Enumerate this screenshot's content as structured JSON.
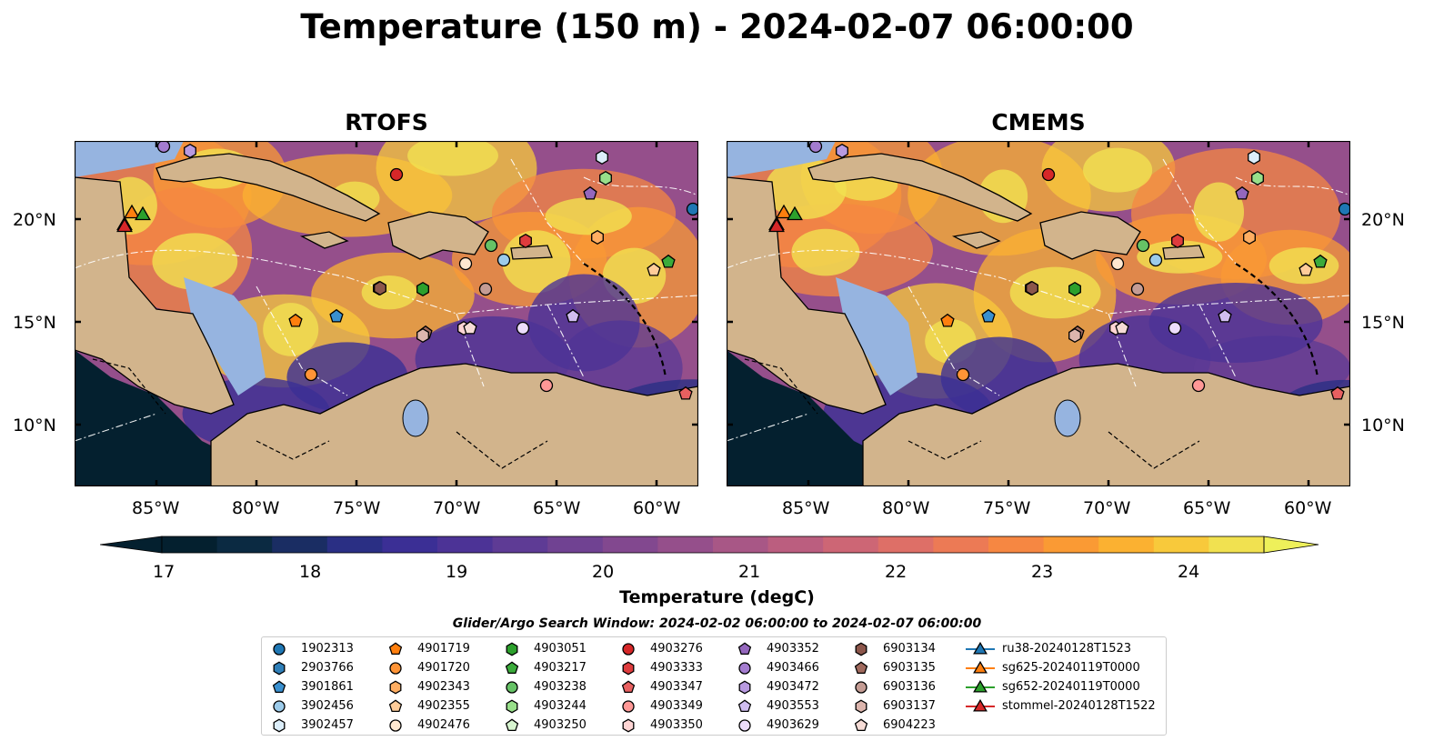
{
  "title": "Temperature (150 m) - 2024-02-07 06:00:00",
  "panels": [
    {
      "title": "RTOFS"
    },
    {
      "title": "CMEMS"
    }
  ],
  "lon_ticks": [
    "85°W",
    "80°W",
    "75°W",
    "70°W",
    "65°W",
    "60°W"
  ],
  "lat_ticks": [
    "20°N",
    "15°N",
    "10°N"
  ],
  "colorbar": {
    "label": "Temperature (degC)",
    "ticks": [
      "17",
      "18",
      "19",
      "20",
      "21",
      "22",
      "23",
      "24"
    ],
    "colors": [
      "#04202f",
      "#0b2a42",
      "#1a2d63",
      "#2a2f84",
      "#3b2f95",
      "#4c3396",
      "#5e3b95",
      "#704292",
      "#82488f",
      "#954f8b",
      "#a85786",
      "#bb5e7f",
      "#cd6675",
      "#de6f67",
      "#ec7a55",
      "#f68742",
      "#fa9a34",
      "#fbb131",
      "#f8c93b",
      "#f1e150"
    ],
    "extend_low": "#04202f",
    "extend_high": "#eef05a",
    "land_color": "#d2b48c",
    "shelf_color": "#96b4e0"
  },
  "legend": {
    "heading": "Glider/Argo Search Window: 2024-02-02 06:00:00 to 2024-02-07 06:00:00",
    "columns": [
      [
        {
          "label": "1902313",
          "marker": "circle",
          "color": "#1f77b4"
        },
        {
          "label": "2903766",
          "marker": "hexagon",
          "color": "#2f7fb8"
        },
        {
          "label": "3901861",
          "marker": "pentagon",
          "color": "#3a90cf"
        },
        {
          "label": "3902456",
          "marker": "circle",
          "color": "#9ccbea"
        },
        {
          "label": "3902457",
          "marker": "hexagon",
          "color": "#dceefa"
        }
      ],
      [
        {
          "label": "4901719",
          "marker": "pentagon",
          "color": "#ff7f0e"
        },
        {
          "label": "4901720",
          "marker": "circle",
          "color": "#ff9436"
        },
        {
          "label": "4902343",
          "marker": "hexagon",
          "color": "#ffae62"
        },
        {
          "label": "4902355",
          "marker": "pentagon",
          "color": "#ffcc99"
        },
        {
          "label": "4902476",
          "marker": "circle",
          "color": "#ffe8d0"
        }
      ],
      [
        {
          "label": "4903051",
          "marker": "hexagon",
          "color": "#2ca02c"
        },
        {
          "label": "4903217",
          "marker": "pentagon",
          "color": "#3bab3b"
        },
        {
          "label": "4903238",
          "marker": "circle",
          "color": "#66c266"
        },
        {
          "label": "4903244",
          "marker": "hexagon",
          "color": "#98df8a"
        },
        {
          "label": "4903250",
          "marker": "pentagon",
          "color": "#d8f5d0"
        }
      ],
      [
        {
          "label": "4903276",
          "marker": "circle",
          "color": "#d62728"
        },
        {
          "label": "4903333",
          "marker": "hexagon",
          "color": "#de3c3d"
        },
        {
          "label": "4903347",
          "marker": "pentagon",
          "color": "#e86060"
        },
        {
          "label": "4903349",
          "marker": "circle",
          "color": "#ff9896"
        },
        {
          "label": "4903350",
          "marker": "hexagon",
          "color": "#ffd5d4"
        }
      ],
      [
        {
          "label": "4903352",
          "marker": "pentagon",
          "color": "#9467bd"
        },
        {
          "label": "4903466",
          "marker": "circle",
          "color": "#a47cd0"
        },
        {
          "label": "4903472",
          "marker": "hexagon",
          "color": "#b89ae0"
        },
        {
          "label": "4903553",
          "marker": "pentagon",
          "color": "#d0bdf0"
        },
        {
          "label": "4903629",
          "marker": "circle",
          "color": "#ecdcfb"
        }
      ],
      [
        {
          "label": "6903134",
          "marker": "hexagon",
          "color": "#8c564b"
        },
        {
          "label": "6903135",
          "marker": "pentagon",
          "color": "#a06a5e"
        },
        {
          "label": "6903136",
          "marker": "circle",
          "color": "#c49c94"
        },
        {
          "label": "6903137",
          "marker": "hexagon",
          "color": "#dcb5ad"
        },
        {
          "label": "6904223",
          "marker": "pentagon",
          "color": "#f6dcd6"
        }
      ],
      [
        {
          "label": "ru38-20240128T1523",
          "marker": "triangle",
          "color": "#1f77b4"
        },
        {
          "label": "sg625-20240119T0000",
          "marker": "triangle",
          "color": "#ff7f0e"
        },
        {
          "label": "sg652-20240119T0000",
          "marker": "triangle",
          "color": "#2ca02c"
        },
        {
          "label": "stommel-20240128T1522",
          "marker": "triangle",
          "color": "#d62728"
        }
      ]
    ]
  }
}
